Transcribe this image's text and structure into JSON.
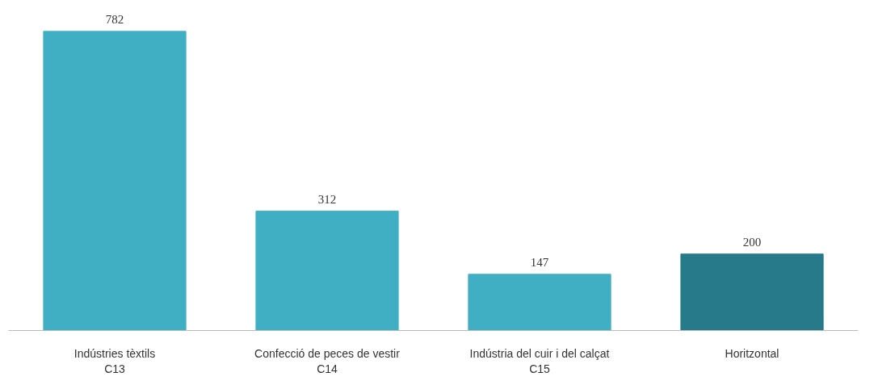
{
  "chart_data": {
    "type": "bar",
    "categories": [
      "Indústries tèxtils\nC13",
      "Confecció de peces de vestir\nC14",
      "Indústria del cuir i del calçat\nC15",
      "Horitzontal"
    ],
    "values": [
      782,
      312,
      147,
      200
    ],
    "colors": [
      "#40afc4",
      "#40afc4",
      "#40afc4",
      "#277a8a"
    ],
    "data_labels": true
  }
}
